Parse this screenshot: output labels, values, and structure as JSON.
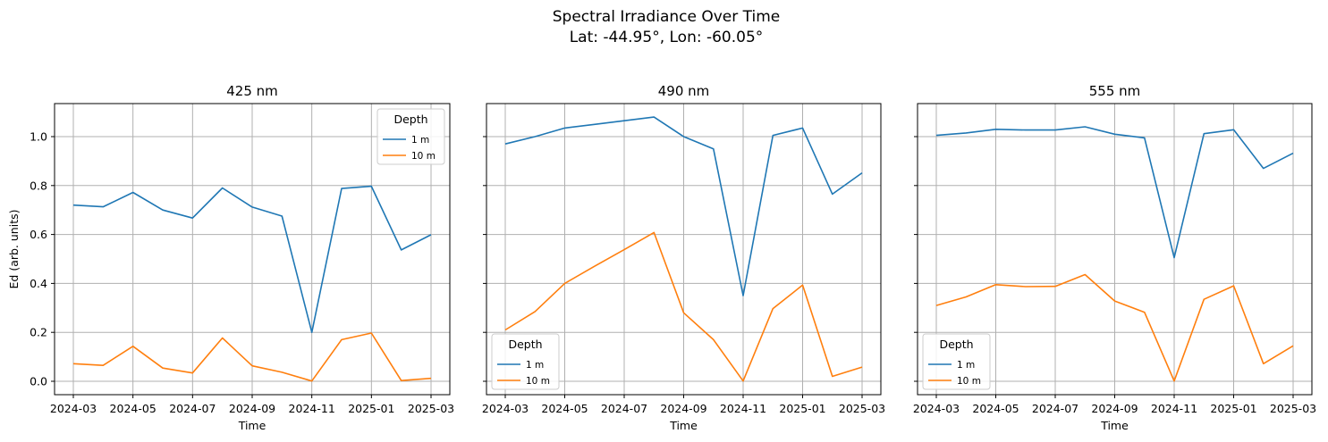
{
  "figure": {
    "title_line1": "Spectral Irradiance Over Time",
    "title_line2": "Lat: -44.95°, Lon: -60.05°"
  },
  "colors": {
    "1 m": "#1f77b4",
    "10 m": "#ff7f0e",
    "grid": "#b0b0b0"
  },
  "chart_data": [
    {
      "type": "line",
      "title": "425 nm",
      "xlabel": "Time",
      "ylabel": "Ed (arb. units)",
      "x": [
        "2024-03",
        "2024-04",
        "2024-05",
        "2024-06",
        "2024-07",
        "2024-08",
        "2024-09",
        "2024-10",
        "2024-11",
        "2024-12",
        "2025-01",
        "2025-02",
        "2025-03"
      ],
      "xticks": [
        "2024-03",
        "2024-05",
        "2024-07",
        "2024-09",
        "2024-11",
        "2025-01",
        "2025-03"
      ],
      "yticks": [
        "0.0",
        "0.2",
        "0.4",
        "0.6",
        "0.8",
        "1.0"
      ],
      "ylim": [
        -0.05,
        1.13
      ],
      "grid": true,
      "legend": {
        "title": "Depth",
        "placement": "upper right"
      },
      "series": [
        {
          "name": "1 m",
          "values": [
            0.72,
            0.713,
            0.772,
            0.7,
            0.667,
            0.79,
            0.712,
            0.675,
            0.2,
            0.788,
            0.797,
            0.537,
            0.599
          ]
        },
        {
          "name": "10 m",
          "values": [
            0.072,
            0.065,
            0.143,
            0.054,
            0.034,
            0.177,
            0.063,
            0.037,
            0.001,
            0.17,
            0.197,
            0.003,
            0.012
          ]
        }
      ]
    },
    {
      "type": "line",
      "title": "490 nm",
      "xlabel": "Time",
      "ylabel": "",
      "x": [
        "2024-03",
        "2024-04",
        "2024-05",
        "2024-06",
        "2024-07",
        "2024-08",
        "2024-09",
        "2024-10",
        "2024-11",
        "2024-12",
        "2025-01",
        "2025-02",
        "2025-03"
      ],
      "xticks": [
        "2024-03",
        "2024-05",
        "2024-07",
        "2024-09",
        "2024-11",
        "2025-01",
        "2025-03"
      ],
      "yticks": [],
      "ylim": [
        -0.05,
        1.13
      ],
      "grid": true,
      "legend": {
        "title": "Depth",
        "placement": "lower left"
      },
      "series": [
        {
          "name": "1 m",
          "values": [
            0.97,
            1.0,
            1.035,
            1.05,
            1.065,
            1.08,
            1.0,
            0.95,
            0.35,
            1.005,
            1.035,
            0.765,
            0.852
          ]
        },
        {
          "name": "10 m",
          "values": [
            0.21,
            0.285,
            0.4,
            0.47,
            0.538,
            0.608,
            0.28,
            0.17,
            0.001,
            0.297,
            0.393,
            0.02,
            0.058
          ]
        }
      ]
    },
    {
      "type": "line",
      "title": "555 nm",
      "xlabel": "Time",
      "ylabel": "",
      "x": [
        "2024-03",
        "2024-04",
        "2024-05",
        "2024-06",
        "2024-07",
        "2024-08",
        "2024-09",
        "2024-10",
        "2024-11",
        "2024-12",
        "2025-01",
        "2025-02",
        "2025-03"
      ],
      "xticks": [
        "2024-03",
        "2024-05",
        "2024-07",
        "2024-09",
        "2024-11",
        "2025-01",
        "2025-03"
      ],
      "yticks": [],
      "ylim": [
        -0.05,
        1.13
      ],
      "grid": true,
      "legend": {
        "title": "Depth",
        "placement": "lower left"
      },
      "series": [
        {
          "name": "1 m",
          "values": [
            1.005,
            1.015,
            1.03,
            1.027,
            1.027,
            1.04,
            1.01,
            0.995,
            0.505,
            1.012,
            1.028,
            0.87,
            0.932
          ]
        },
        {
          "name": "10 m",
          "values": [
            0.31,
            0.345,
            0.395,
            0.387,
            0.388,
            0.436,
            0.328,
            0.282,
            0.001,
            0.335,
            0.39,
            0.072,
            0.145
          ]
        }
      ]
    }
  ]
}
